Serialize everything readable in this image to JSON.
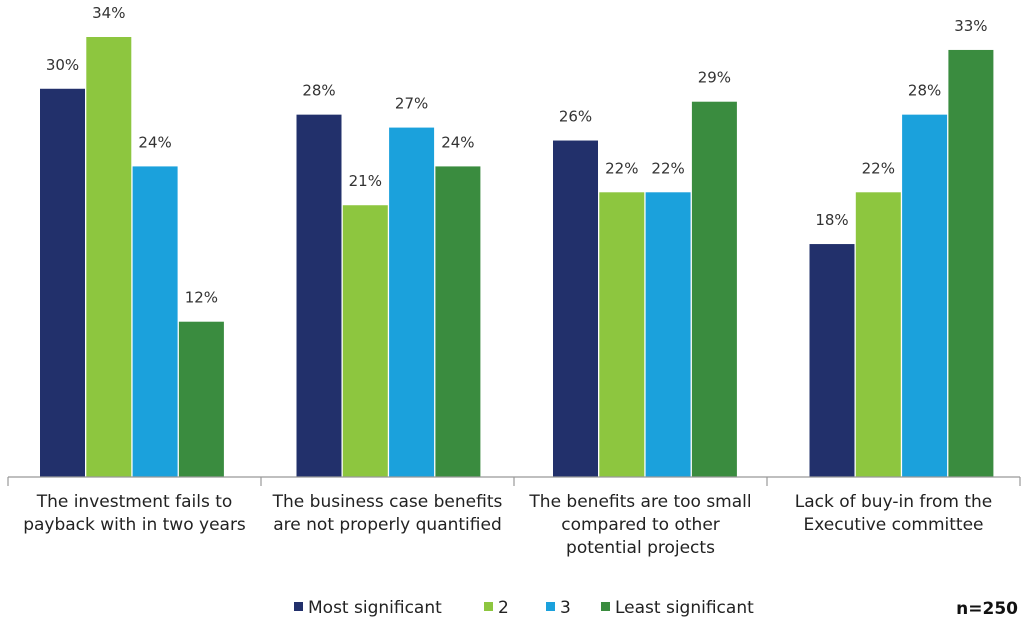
{
  "chart_data": {
    "type": "bar",
    "categories": [
      [
        "The investment fails to",
        "payback with in two years"
      ],
      [
        "The business case benefits",
        "are not properly quantified"
      ],
      [
        "The benefits are too small",
        "compared to other",
        "potential projects"
      ],
      [
        "Lack of buy-in from the",
        "Executive committee"
      ]
    ],
    "series": [
      {
        "name": "Most significant",
        "color": "#22306B",
        "values": [
          30,
          28,
          26,
          18
        ]
      },
      {
        "name": "2",
        "color": "#8DC63F",
        "values": [
          34,
          21,
          22,
          22
        ]
      },
      {
        "name": "3",
        "color": "#1BA1DC",
        "values": [
          24,
          27,
          22,
          28
        ]
      },
      {
        "name": "Least significant",
        "color": "#3A8C3F",
        "values": [
          12,
          24,
          29,
          33
        ]
      }
    ],
    "value_suffix": "%",
    "ylim": [
      0,
      34
    ],
    "grid": false,
    "legend_position": "bottom-center",
    "note": "n=250"
  }
}
